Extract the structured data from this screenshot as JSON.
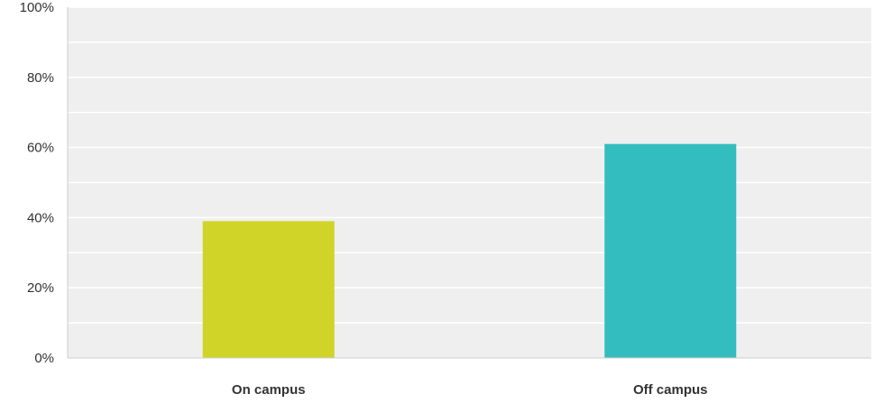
{
  "chart_data": {
    "type": "bar",
    "categories": [
      "On campus",
      "Off campus"
    ],
    "values": [
      39,
      61
    ],
    "colors": [
      "#d0d428",
      "#34bdbe"
    ],
    "y_ticks": [
      "0%",
      "20%",
      "40%",
      "60%",
      "80%",
      "100%"
    ],
    "ylim": [
      0,
      100
    ],
    "grid": true,
    "plot_background": "#efefef",
    "gridline_color": "#ffffff",
    "axis_color": "#cccccc",
    "title": "",
    "xlabel": "",
    "ylabel": ""
  }
}
